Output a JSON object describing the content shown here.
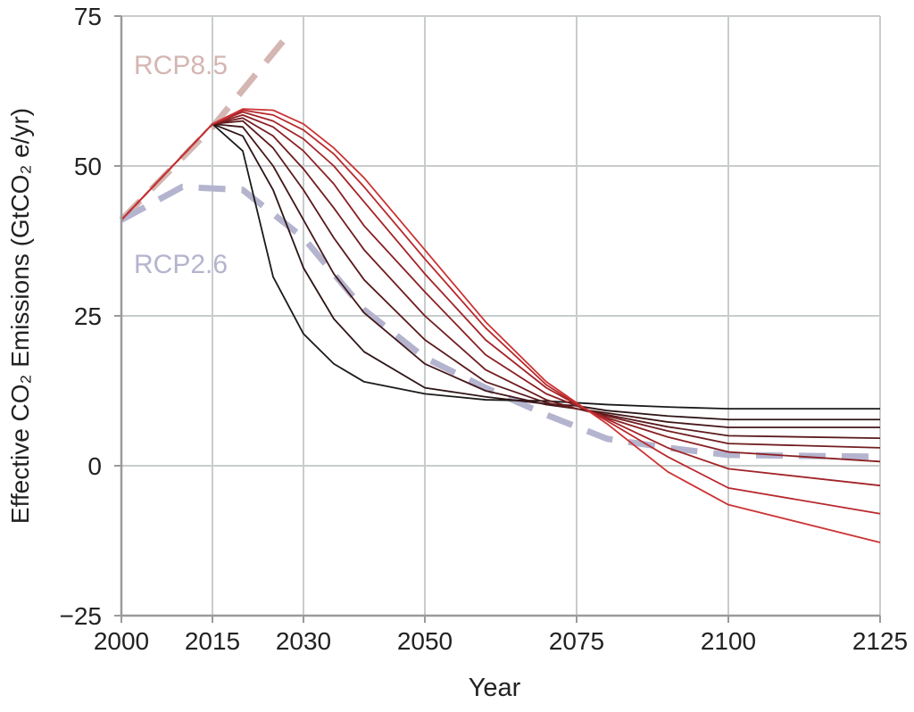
{
  "chart_data": {
    "type": "line",
    "title": "",
    "xlabel": "Year",
    "ylabel": "Effective CO₂ Emissions (GtCO₂ e/yr)",
    "xlim": [
      2000,
      2125
    ],
    "ylim": [
      -25,
      75
    ],
    "xticks": [
      2000,
      2015,
      2030,
      2050,
      2075,
      2100,
      2125
    ],
    "yticks": [
      -25,
      0,
      25,
      50,
      75
    ],
    "ytick_labels": [
      "−25",
      "0",
      "25",
      "50",
      "75"
    ],
    "grid": true,
    "x": [
      2000,
      2015,
      2020,
      2025,
      2030,
      2035,
      2040,
      2050,
      2060,
      2070,
      2075,
      2080,
      2090,
      2100,
      2125
    ],
    "series": [
      {
        "color": "#1a1a1a",
        "values": [
          41,
          57,
          52.5,
          31.5,
          22,
          17,
          14,
          12,
          11,
          10.8,
          10.5,
          10.2,
          9.8,
          9.5,
          9.5
        ]
      },
      {
        "color": "#2e1516",
        "values": [
          41,
          57,
          55,
          46,
          33,
          24.5,
          19,
          13,
          11.5,
          10.3,
          10,
          9.2,
          8.3,
          7.7,
          7.7
        ]
      },
      {
        "color": "#431719",
        "values": [
          41,
          57,
          56.5,
          50,
          41,
          32,
          25.5,
          17,
          12.5,
          10.2,
          9.5,
          8.8,
          7.3,
          6.4,
          6.4
        ]
      },
      {
        "color": "#5a1a1c",
        "values": [
          41,
          57,
          57.5,
          53,
          46,
          38,
          31,
          21,
          14,
          10.5,
          9.5,
          8.5,
          6.5,
          5.0,
          4.6
        ]
      },
      {
        "color": "#711d20",
        "values": [
          41,
          57,
          58,
          55,
          49.5,
          43,
          36,
          25,
          16,
          11,
          9.5,
          8.3,
          5.8,
          3.7,
          3.0
        ]
      },
      {
        "color": "#8a2024",
        "values": [
          41,
          57,
          58.5,
          56.5,
          52.5,
          47,
          40,
          29,
          18.5,
          12,
          10,
          8,
          4.8,
          2.3,
          0.7
        ]
      },
      {
        "color": "#a22428",
        "values": [
          41,
          57,
          59,
          57.5,
          54.5,
          50,
          44,
          32,
          21,
          13,
          10.2,
          7.8,
          3,
          -0.5,
          -3.3
        ]
      },
      {
        "color": "#b8282c",
        "values": [
          41,
          57,
          59.3,
          58.5,
          56,
          52,
          46.5,
          34.5,
          23,
          13.5,
          10.3,
          7.5,
          1.5,
          -3.7,
          -8
        ]
      },
      {
        "color": "#cc3333",
        "values": [
          41,
          57,
          59.5,
          59.3,
          57,
          53,
          48,
          36,
          24,
          14,
          10.5,
          7,
          -1,
          -6.5,
          -12.8
        ]
      }
    ],
    "reference_series": [
      {
        "name": "RCP8.5",
        "color": "#d4b6b2",
        "style": "dashed",
        "x": [
          2000,
          2015,
          2028
        ],
        "values": [
          41,
          56.5,
          72.5
        ]
      },
      {
        "name": "RCP2.6",
        "color": "#b4b4cf",
        "style": "dashed",
        "x": [
          2000,
          2010,
          2020,
          2030,
          2040,
          2050,
          2060,
          2070,
          2080,
          2090,
          2100,
          2125
        ],
        "values": [
          41,
          46.5,
          46,
          38,
          26,
          18,
          13,
          8.5,
          4.5,
          3,
          1.8,
          1.5
        ]
      }
    ]
  }
}
